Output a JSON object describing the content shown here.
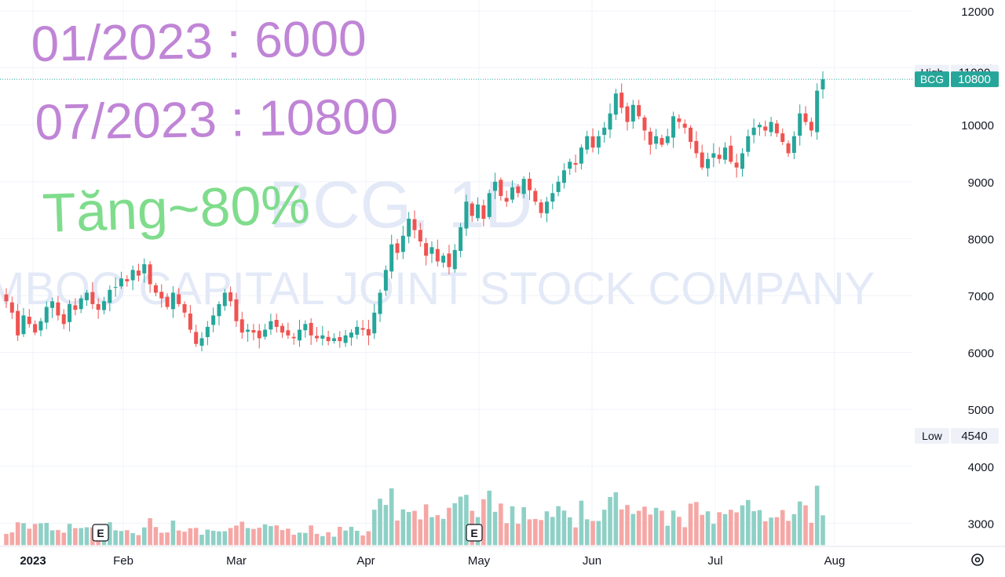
{
  "chart_data": {
    "type": "candlestick",
    "symbol": "BCG",
    "interval": "1D",
    "watermark_symbol": "BCG, 1D",
    "watermark_company": "BAMBOO CAPITAL JOINT STOCK COMPANY",
    "y_ticks": [
      12000,
      11000,
      10000,
      9000,
      8000,
      7000,
      6000,
      5000,
      4000,
      3000
    ],
    "ylim": [
      2628,
      12130
    ],
    "x_months": [
      {
        "label": "2023",
        "bold": true
      },
      {
        "label": "Feb",
        "bold": false
      },
      {
        "label": "Mar",
        "bold": false
      },
      {
        "label": "Apr",
        "bold": false
      },
      {
        "label": "May",
        "bold": false
      },
      {
        "label": "Jun",
        "bold": false
      },
      {
        "label": "Jul",
        "bold": false
      },
      {
        "label": "Aug",
        "bold": false
      }
    ],
    "price_labels": [
      {
        "name": "High",
        "value": "11000"
      },
      {
        "name": "BCG",
        "value": "10800"
      },
      {
        "name": "Low",
        "value": "4540"
      }
    ],
    "last_price": 10800,
    "earnings_markers": [
      "E",
      "E"
    ],
    "colors": {
      "up": "#26a69a",
      "down": "#ef5350",
      "up_volume": "#8fd0c6",
      "down_volume": "#f5a7a5",
      "grid": "#f0f3fa",
      "axis_text": "#131722",
      "watermark": "#e3e9f7"
    },
    "monthly_close_summary": [
      {
        "month": "Jan",
        "close": 7300
      },
      {
        "month": "Feb",
        "close": 6600
      },
      {
        "month": "Mar",
        "close": 6400
      },
      {
        "month": "Apr",
        "close": 7700
      },
      {
        "month": "May",
        "close": 8600
      },
      {
        "month": "Jun",
        "close": 9400
      },
      {
        "month": "Jul",
        "close": 10800
      }
    ],
    "price_path": [
      6900,
      6700,
      6300,
      6650,
      6500,
      6350,
      6550,
      6800,
      6900,
      6650,
      6500,
      6850,
      6750,
      6950,
      7050,
      6850,
      6750,
      6900,
      7100,
      7150,
      7300,
      7250,
      7450,
      7350,
      7550,
      7200,
      7050,
      6950,
      6800,
      7050,
      6850,
      6700,
      6400,
      6150,
      6250,
      6450,
      6650,
      6850,
      7050,
      6900,
      6550,
      6350,
      6400,
      6350,
      6250,
      6400,
      6550,
      6450,
      6350,
      6300,
      6250,
      6400,
      6500,
      6300,
      6250,
      6300,
      6200,
      6250,
      6200,
      6300,
      6350,
      6450,
      6400,
      6300,
      6700,
      7050,
      7450,
      7900,
      7750,
      8050,
      8350,
      8150,
      7950,
      7700,
      7850,
      7600,
      7700,
      7500,
      7800,
      8200,
      8650,
      8400,
      8600,
      8350,
      8800,
      9000,
      8750,
      8650,
      8900,
      8800,
      9050,
      8850,
      8650,
      8450,
      8650,
      8800,
      9000,
      9200,
      9350,
      9300,
      9600,
      9800,
      9600,
      9800,
      9950,
      10200,
      10550,
      10300,
      10050,
      10350,
      10150,
      9900,
      9650,
      9800,
      9650,
      9800,
      10150,
      10050,
      9950,
      9700,
      9500,
      9250,
      9400,
      9500,
      9400,
      9600,
      9350,
      9250,
      9500,
      9800,
      9950,
      10000,
      9900,
      10050,
      9850,
      9700,
      9500,
      9800,
      10200,
      10050,
      9900,
      10600,
      10800
    ]
  },
  "annotations": {
    "line1": "01/2023 : 6000",
    "line2": "07/2023 : 10800",
    "line3": "Tăng~80%"
  },
  "ui": {
    "settings_icon": "gear-icon"
  }
}
